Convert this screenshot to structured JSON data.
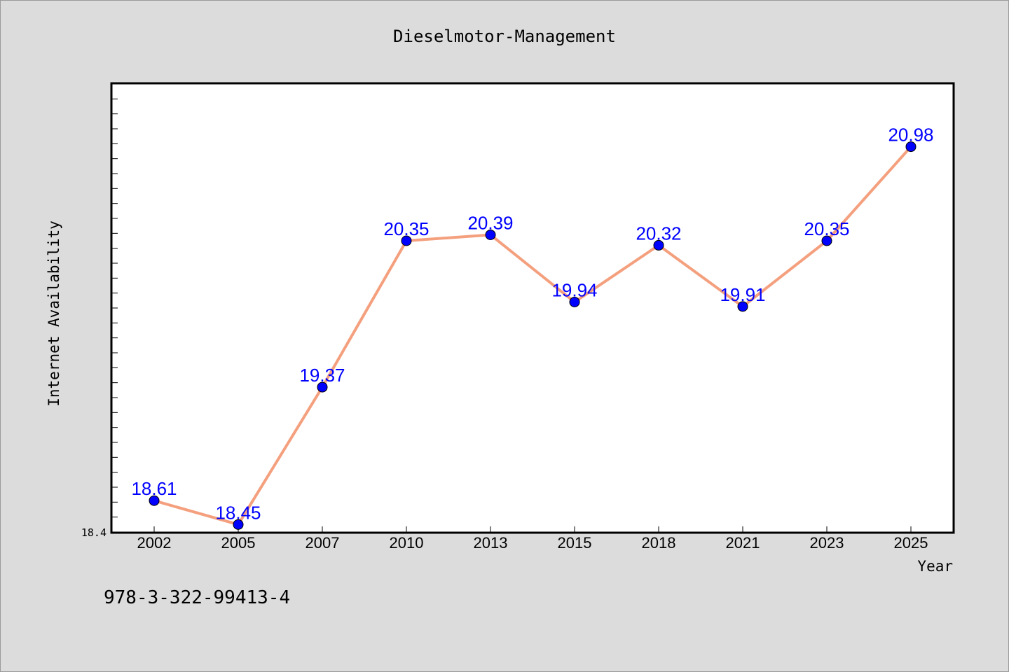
{
  "chart_data": {
    "type": "line",
    "title": "Dieselmotor-Management",
    "xlabel": "Year",
    "ylabel": "Internet Availability",
    "categories": [
      "2002",
      "2005",
      "2007",
      "2010",
      "2013",
      "2015",
      "2018",
      "2021",
      "2023",
      "2025"
    ],
    "values": [
      18.61,
      18.45,
      19.37,
      20.35,
      20.39,
      19.94,
      20.32,
      19.91,
      20.35,
      20.98
    ],
    "data_labels": [
      "18.61",
      "18.45",
      "19.37",
      "20.35",
      "20.39",
      "19.94",
      "20.32",
      "19.91",
      "20.35",
      "20.98"
    ],
    "ylim": [
      18.4,
      21.4
    ],
    "y_min_label": "18.4",
    "grid": false,
    "line_color": "#f4a07e",
    "marker_color": "#0000ff",
    "label_color": "#0000ff",
    "plot_background": "#ffffff",
    "figure_background": "#dcdcdc"
  },
  "footer": {
    "isbn": "978-3-322-99413-4"
  }
}
